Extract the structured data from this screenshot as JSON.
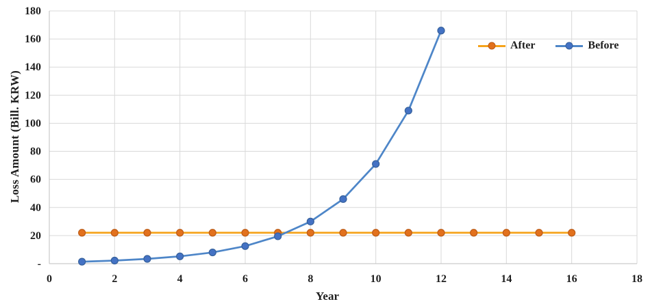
{
  "chart_data": {
    "type": "line",
    "title": "",
    "xlabel": "Year",
    "ylabel": "Loss Amount (Bill. KRW)",
    "xlim": [
      0,
      18
    ],
    "ylim": [
      0,
      180
    ],
    "x_ticks": [
      0,
      2,
      4,
      6,
      8,
      10,
      12,
      14,
      16,
      18
    ],
    "y_ticks": [
      0,
      20,
      40,
      60,
      80,
      100,
      120,
      140,
      160,
      180
    ],
    "y_zero_label": "-",
    "grid": true,
    "legend_position": "top-right-inside",
    "series": [
      {
        "name": "After",
        "x": [
          1,
          2,
          3,
          4,
          5,
          6,
          7,
          8,
          9,
          10,
          11,
          12,
          13,
          14,
          15,
          16
        ],
        "values": [
          22,
          22,
          22,
          22,
          22,
          22,
          22,
          22,
          22,
          22,
          22,
          22,
          22,
          22,
          22,
          22
        ],
        "line_color": "#F5A31B",
        "marker_color": "#E2711D",
        "marker_edge_color": "#BC5B16"
      },
      {
        "name": "Before",
        "x": [
          1,
          2,
          3,
          4,
          5,
          6,
          7,
          8,
          9,
          10,
          11,
          12
        ],
        "values": [
          1.4,
          2.2,
          3.4,
          5.2,
          8,
          12.5,
          19.5,
          30,
          46,
          71,
          109,
          166
        ],
        "line_color": "#4E86C8",
        "marker_color": "#4472C4",
        "marker_edge_color": "#35609B"
      }
    ],
    "colors": {
      "grid": "#D9D9D9",
      "axis": "#BFBFBF",
      "text": "#1F1F1F",
      "background": "#FFFFFF"
    }
  }
}
